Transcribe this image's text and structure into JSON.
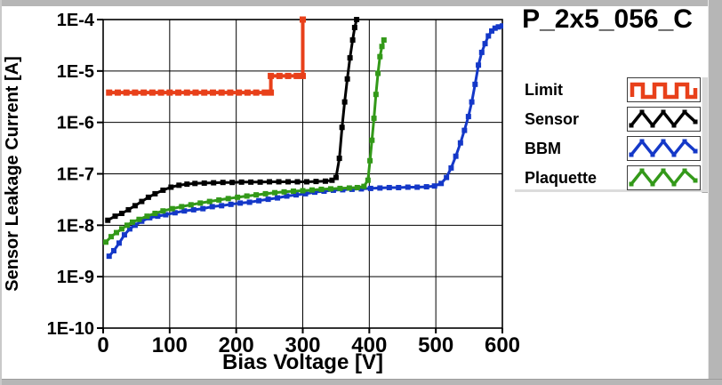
{
  "chart_data": {
    "type": "line",
    "title": "P_2x5_056_C",
    "xlabel": "Bias Voltage [V]",
    "ylabel": "Sensor Leakage Current [A]",
    "xlim": [
      0,
      600
    ],
    "x_ticks": [
      0,
      100,
      200,
      300,
      400,
      500,
      600
    ],
    "ylog": true,
    "ylim_exp": [
      -10,
      -4
    ],
    "y_tick_labels": [
      "1E-4",
      "1E-5",
      "1E-6",
      "1E-7",
      "1E-8",
      "1E-9",
      "1E-10"
    ],
    "grid": true,
    "grid_color": "#000000",
    "background": "#ffffff",
    "legend_position": "right",
    "series": [
      {
        "name": "Limit",
        "color": "#e8401a",
        "line_width": 4,
        "marker": "square",
        "marker_size": 7,
        "swatch": "square-wave",
        "points": [
          [
            9,
            3.8e-06
          ],
          [
            22,
            3.8e-06
          ],
          [
            35,
            3.8e-06
          ],
          [
            48,
            3.8e-06
          ],
          [
            61,
            3.8e-06
          ],
          [
            74,
            3.8e-06
          ],
          [
            87,
            3.8e-06
          ],
          [
            100,
            3.8e-06
          ],
          [
            113,
            3.8e-06
          ],
          [
            126,
            3.8e-06
          ],
          [
            139,
            3.8e-06
          ],
          [
            152,
            3.8e-06
          ],
          [
            165,
            3.8e-06
          ],
          [
            178,
            3.8e-06
          ],
          [
            191,
            3.8e-06
          ],
          [
            204,
            3.8e-06
          ],
          [
            217,
            3.8e-06
          ],
          [
            230,
            3.8e-06
          ],
          [
            243,
            3.8e-06
          ],
          [
            252,
            3.8e-06
          ],
          [
            252,
            8e-06
          ],
          [
            265,
            8e-06
          ],
          [
            278,
            8e-06
          ],
          [
            291,
            8e-06
          ],
          [
            300,
            8e-06
          ],
          [
            300,
            0.0001
          ]
        ]
      },
      {
        "name": "Sensor",
        "color": "#000000",
        "line_width": 3,
        "marker": "square",
        "marker_size": 6,
        "swatch": "triangle-wave",
        "points": [
          [
            7,
            1.25e-08
          ],
          [
            18,
            1.5e-08
          ],
          [
            28,
            1.7e-08
          ],
          [
            38,
            2e-08
          ],
          [
            48,
            2.4e-08
          ],
          [
            58,
            2.9e-08
          ],
          [
            68,
            3.5e-08
          ],
          [
            78,
            4.1e-08
          ],
          [
            90,
            4.8e-08
          ],
          [
            102,
            5.5e-08
          ],
          [
            114,
            6e-08
          ],
          [
            126,
            6.3e-08
          ],
          [
            138,
            6.5e-08
          ],
          [
            152,
            6.6e-08
          ],
          [
            166,
            6.7e-08
          ],
          [
            180,
            6.8e-08
          ],
          [
            194,
            6.8e-08
          ],
          [
            208,
            6.9e-08
          ],
          [
            222,
            6.9e-08
          ],
          [
            236,
            6.9e-08
          ],
          [
            250,
            7e-08
          ],
          [
            264,
            7e-08
          ],
          [
            278,
            7e-08
          ],
          [
            292,
            7e-08
          ],
          [
            306,
            7e-08
          ],
          [
            320,
            7.1e-08
          ],
          [
            334,
            7.2e-08
          ],
          [
            344,
            7.5e-08
          ],
          [
            350,
            8.5e-08
          ],
          [
            355,
            2e-07
          ],
          [
            359,
            8e-07
          ],
          [
            363,
            2.5e-06
          ],
          [
            367,
            7e-06
          ],
          [
            371,
            1.8e-05
          ],
          [
            375,
            4e-05
          ],
          [
            378,
            7e-05
          ],
          [
            381,
            0.0001
          ]
        ]
      },
      {
        "name": "BBM",
        "color": "#1438c8",
        "line_width": 3,
        "marker": "square",
        "marker_size": 6,
        "swatch": "triangle-wave",
        "points": [
          [
            9,
            2.5e-09
          ],
          [
            16,
            3.2e-09
          ],
          [
            24,
            4.5e-09
          ],
          [
            32,
            6.5e-09
          ],
          [
            40,
            8.5e-09
          ],
          [
            48,
            1e-08
          ],
          [
            58,
            1.2e-08
          ],
          [
            70,
            1.4e-08
          ],
          [
            82,
            1.5e-08
          ],
          [
            94,
            1.6e-08
          ],
          [
            108,
            1.75e-08
          ],
          [
            122,
            1.9e-08
          ],
          [
            136,
            2e-08
          ],
          [
            150,
            2.1e-08
          ],
          [
            164,
            2.3e-08
          ],
          [
            178,
            2.4e-08
          ],
          [
            192,
            2.55e-08
          ],
          [
            206,
            2.7e-08
          ],
          [
            220,
            2.8e-08
          ],
          [
            234,
            3e-08
          ],
          [
            248,
            3.2e-08
          ],
          [
            262,
            3.4e-08
          ],
          [
            276,
            3.7e-08
          ],
          [
            290,
            3.9e-08
          ],
          [
            304,
            4.1e-08
          ],
          [
            318,
            4.4e-08
          ],
          [
            332,
            4.6e-08
          ],
          [
            346,
            4.8e-08
          ],
          [
            360,
            4.9e-08
          ],
          [
            374,
            5e-08
          ],
          [
            388,
            5.1e-08
          ],
          [
            402,
            5.2e-08
          ],
          [
            416,
            5.3e-08
          ],
          [
            430,
            5.4e-08
          ],
          [
            444,
            5.4e-08
          ],
          [
            458,
            5.5e-08
          ],
          [
            472,
            5.5e-08
          ],
          [
            486,
            5.6e-08
          ],
          [
            498,
            5.8e-08
          ],
          [
            508,
            6.5e-08
          ],
          [
            516,
            8.5e-08
          ],
          [
            523,
            1.3e-07
          ],
          [
            530,
            2.2e-07
          ],
          [
            537,
            4e-07
          ],
          [
            543,
            7e-07
          ],
          [
            549,
            1.3e-06
          ],
          [
            554,
            2.5e-06
          ],
          [
            559,
            5.5e-06
          ],
          [
            564,
            1.3e-05
          ],
          [
            569,
            2.3e-05
          ],
          [
            574,
            3.4e-05
          ],
          [
            579,
            4.8e-05
          ],
          [
            584,
            6e-05
          ],
          [
            589,
            6.8e-05
          ],
          [
            594,
            7.2e-05
          ],
          [
            600,
            7.5e-05
          ]
        ]
      },
      {
        "name": "Plaquette",
        "color": "#339919",
        "line_width": 3,
        "marker": "square",
        "marker_size": 6,
        "swatch": "triangle-wave",
        "points": [
          [
            4,
            4.7e-09
          ],
          [
            12,
            6e-09
          ],
          [
            20,
            7.2e-09
          ],
          [
            28,
            8.5e-09
          ],
          [
            36,
            1e-08
          ],
          [
            44,
            1.15e-08
          ],
          [
            54,
            1.3e-08
          ],
          [
            66,
            1.5e-08
          ],
          [
            78,
            1.7e-08
          ],
          [
            90,
            1.9e-08
          ],
          [
            104,
            2.1e-08
          ],
          [
            118,
            2.3e-08
          ],
          [
            132,
            2.5e-08
          ],
          [
            146,
            2.7e-08
          ],
          [
            160,
            2.9e-08
          ],
          [
            174,
            3.1e-08
          ],
          [
            188,
            3.3e-08
          ],
          [
            202,
            3.5e-08
          ],
          [
            216,
            3.7e-08
          ],
          [
            230,
            3.9e-08
          ],
          [
            244,
            4.1e-08
          ],
          [
            258,
            4.3e-08
          ],
          [
            272,
            4.45e-08
          ],
          [
            286,
            4.6e-08
          ],
          [
            300,
            4.7e-08
          ],
          [
            314,
            4.85e-08
          ],
          [
            328,
            5e-08
          ],
          [
            342,
            5.1e-08
          ],
          [
            356,
            5.2e-08
          ],
          [
            370,
            5.3e-08
          ],
          [
            382,
            5.4e-08
          ],
          [
            392,
            5.7e-08
          ],
          [
            398,
            7.5e-08
          ],
          [
            401,
            1.8e-07
          ],
          [
            404,
            4.5e-07
          ],
          [
            407,
            1.2e-06
          ],
          [
            410,
            3.5e-06
          ],
          [
            413,
            9e-06
          ],
          [
            416,
            1.9e-05
          ],
          [
            419,
            3e-05
          ],
          [
            422,
            4e-05
          ]
        ]
      }
    ]
  }
}
